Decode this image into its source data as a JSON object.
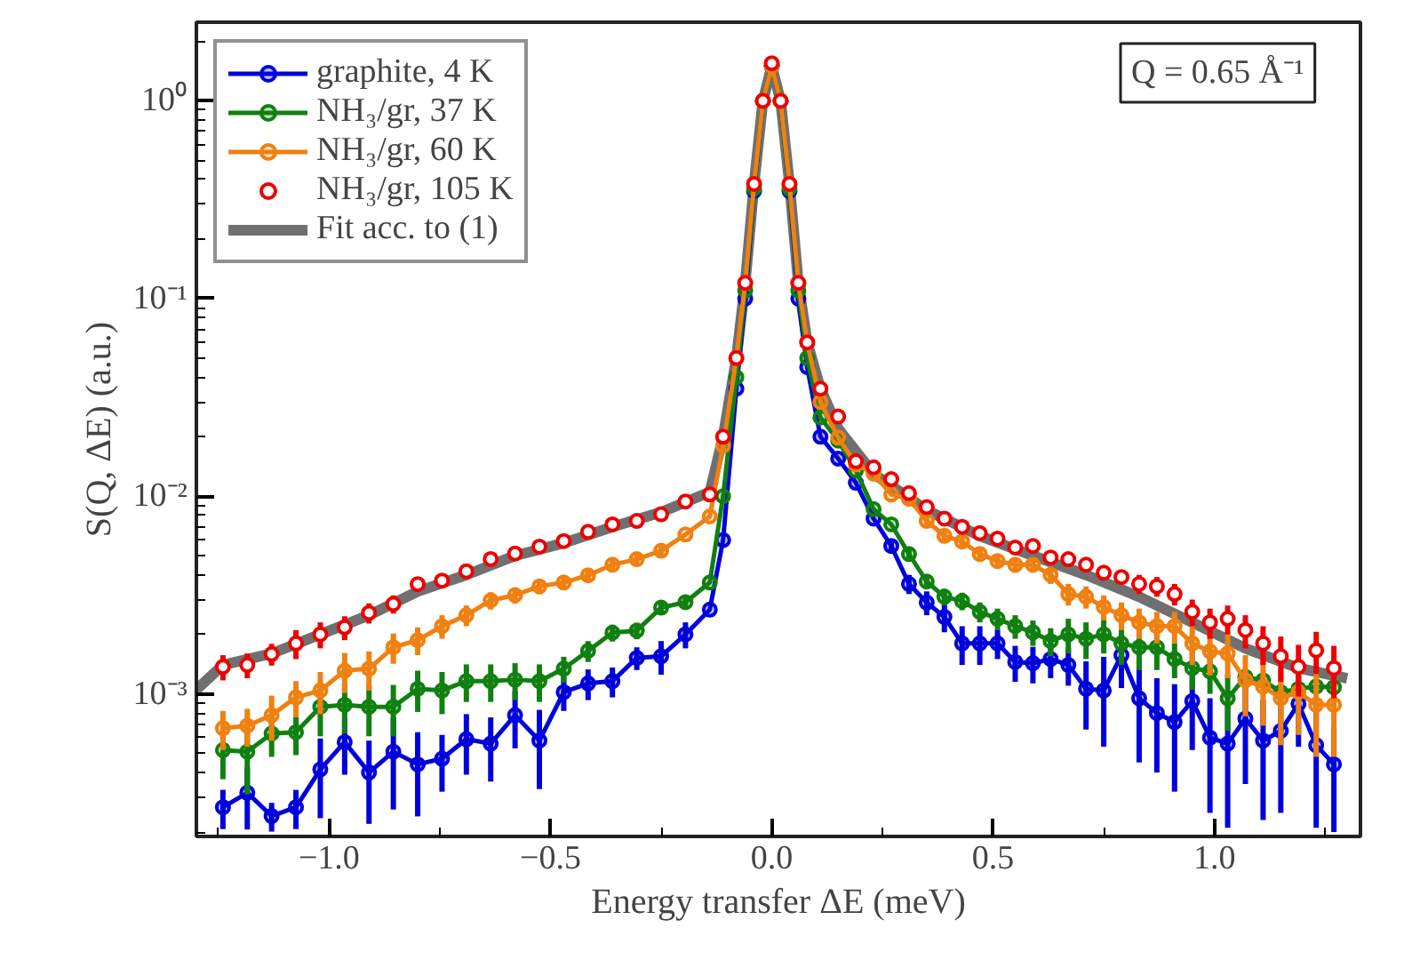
{
  "chart_data": {
    "type": "line",
    "xlabel": "Energy transfer ΔE (meV)",
    "ylabel": "S(Q, ΔE) (a.u.)",
    "annotations": [
      "Q = 0.65 Å⁻¹"
    ],
    "log": "y",
    "grid": false,
    "legend": "top left",
    "xlim": [
      -1.3,
      1.33
    ],
    "ylim": [
      0.00019,
      2.5
    ],
    "xticks": [
      {
        "value": -1.0,
        "label": "−1.0"
      },
      {
        "value": -0.5,
        "label": "−0.5"
      },
      {
        "value": 0.0,
        "label": "0.0"
      },
      {
        "value": 0.5,
        "label": "0.5"
      },
      {
        "value": 1.0,
        "label": "1.0"
      }
    ],
    "yticks": [
      {
        "value": 0.001,
        "label": "10⁻³"
      },
      {
        "value": 0.01,
        "label": "10⁻²"
      },
      {
        "value": 0.1,
        "label": "10⁻¹"
      },
      {
        "value": 1,
        "label": "10⁰"
      }
    ],
    "x": [
      -1.24,
      -1.185,
      -1.13,
      -1.075,
      -1.02,
      -0.965,
      -0.91,
      -0.855,
      -0.8,
      -0.745,
      -0.69,
      -0.635,
      -0.58,
      -0.525,
      -0.47,
      -0.415,
      -0.36,
      -0.305,
      -0.25,
      -0.195,
      -0.14,
      -0.11,
      -0.08,
      -0.06,
      -0.04,
      -0.02,
      0,
      0.02,
      0.04,
      0.06,
      0.08,
      0.11,
      0.15,
      0.19,
      0.23,
      0.27,
      0.31,
      0.35,
      0.39,
      0.43,
      0.47,
      0.51,
      0.55,
      0.59,
      0.63,
      0.67,
      0.71,
      0.75,
      0.79,
      0.83,
      0.87,
      0.91,
      0.95,
      0.99,
      1.03,
      1.07,
      1.11,
      1.15,
      1.19,
      1.23,
      1.27
    ],
    "series": [
      {
        "name": "Fit acc. to (1)",
        "color": "#707070",
        "marker": "none",
        "x": [
          -1.3,
          -1.24,
          -1.13,
          -1.02,
          -0.91,
          -0.8,
          -0.69,
          -0.58,
          -0.47,
          -0.36,
          -0.25,
          -0.14,
          -0.11,
          -0.08,
          -0.06,
          -0.04,
          -0.02,
          0,
          0.02,
          0.04,
          0.06,
          0.08,
          0.11,
          0.15,
          0.23,
          0.35,
          0.47,
          0.59,
          0.71,
          0.83,
          0.95,
          1.07,
          1.19,
          1.3
        ],
        "values": [
          0.00105,
          0.0014,
          0.0016,
          0.002,
          0.0025,
          0.0033,
          0.004,
          0.005,
          0.0058,
          0.007,
          0.0083,
          0.0105,
          0.02,
          0.05,
          0.12,
          0.38,
          1.0,
          1.5,
          1.0,
          0.38,
          0.12,
          0.06,
          0.035,
          0.022,
          0.013,
          0.0085,
          0.0063,
          0.005,
          0.004,
          0.0031,
          0.0023,
          0.0017,
          0.00135,
          0.0012
        ]
      },
      {
        "name": "graphite, 4 K",
        "color": "#0000dd",
        "marker": "circle",
        "values": [
          0.000267,
          0.000316,
          0.000241,
          0.000267,
          0.000415,
          0.00057,
          0.0004,
          0.00051,
          0.00044,
          0.00047,
          0.00059,
          0.00056,
          0.00078,
          0.00058,
          0.00102,
          0.00113,
          0.00116,
          0.00152,
          0.00155,
          0.002,
          0.00267,
          0.006,
          0.035,
          0.1,
          0.35,
          1.0,
          1.5,
          1.0,
          0.35,
          0.1,
          0.045,
          0.02,
          0.0155,
          0.0117,
          0.0077,
          0.0056,
          0.0036,
          0.0029,
          0.00245,
          0.0018,
          0.0018,
          0.0018,
          0.00145,
          0.00143,
          0.0015,
          0.0014,
          0.00106,
          0.00104,
          0.00157,
          0.00095,
          0.0008,
          0.00072,
          0.00092,
          0.0006,
          0.00056,
          0.00075,
          0.00058,
          0.00065,
          0.00089,
          0.00055,
          0.00044
        ],
        "errors": [
          6e-05,
          0.00011,
          4e-05,
          6e-05,
          0.00018,
          0.00018,
          0.00018,
          0.00025,
          0.0002,
          0.00015,
          0.0002,
          0.0002,
          0.00025,
          0.00025,
          0.0002,
          0.0002,
          0.0002,
          0.0002,
          0.0003,
          0.0003,
          null,
          null,
          null,
          null,
          null,
          null,
          null,
          null,
          null,
          null,
          null,
          null,
          null,
          null,
          null,
          0.0003,
          0.0004,
          0.0004,
          0.0004,
          0.0004,
          0.0004,
          0.0003,
          0.0003,
          0.0003,
          0.0003,
          0.0003,
          0.0004,
          0.0005,
          0.0005,
          0.0005,
          0.0004,
          0.0004,
          0.0004,
          0.00035,
          0.00035,
          0.0004,
          0.00035,
          0.0004,
          0.00035,
          0.00034,
          0.00024
        ]
      },
      {
        "name": "NH₃/gr, 37 K",
        "color": "#108010",
        "marker": "circle",
        "values": [
          0.00052,
          0.00051,
          0.00063,
          0.00064,
          0.00086,
          0.00088,
          0.00086,
          0.00086,
          0.00106,
          0.00104,
          0.00116,
          0.00116,
          0.00118,
          0.00116,
          0.00134,
          0.00165,
          0.00204,
          0.00209,
          0.00273,
          0.00291,
          0.00366,
          0.01,
          0.04,
          0.11,
          0.36,
          1.0,
          1.5,
          1.0,
          0.36,
          0.11,
          0.05,
          0.025,
          0.0191,
          0.0135,
          0.0086,
          0.0072,
          0.0051,
          0.0037,
          0.0031,
          0.00295,
          0.0026,
          0.0024,
          0.0022,
          0.00205,
          0.00185,
          0.002,
          0.0019,
          0.002,
          0.0018,
          0.00172,
          0.00172,
          0.0015,
          0.00135,
          0.0013,
          0.00095,
          0.00122,
          0.00117,
          0.00102,
          0.00106,
          0.00109,
          0.00108
        ],
        "errors": [
          0.00015,
          0.0002,
          0.00015,
          0.00015,
          0.00025,
          0.00025,
          0.00025,
          0.00025,
          0.00025,
          0.00025,
          0.00025,
          0.00025,
          0.00025,
          0.00025,
          0.0002,
          0.0002,
          0.0002,
          0.0002,
          0.0002,
          0.0002,
          null,
          null,
          null,
          null,
          null,
          null,
          null,
          null,
          null,
          null,
          null,
          null,
          null,
          null,
          null,
          null,
          0.0004,
          0.0003,
          0.0003,
          0.0003,
          0.0003,
          0.0003,
          0.0003,
          0.0003,
          0.0003,
          0.0004,
          0.0004,
          0.0004,
          0.0004,
          0.0004,
          0.0004,
          0.0003,
          0.0003,
          0.0003,
          0.0003,
          null,
          null,
          null,
          null,
          null,
          null
        ]
      },
      {
        "name": "NH₃/gr, 60 K",
        "color": "#f08010",
        "marker": "circle",
        "values": [
          0.00067,
          0.00069,
          0.00078,
          0.00096,
          0.00104,
          0.00131,
          0.00134,
          0.00172,
          0.00187,
          0.0022,
          0.0025,
          0.00297,
          0.00316,
          0.0035,
          0.00366,
          0.00398,
          0.0045,
          0.0048,
          0.0053,
          0.0064,
          0.0079,
          0.018,
          0.05,
          0.12,
          0.38,
          1.0,
          1.5,
          1.0,
          0.38,
          0.12,
          0.06,
          0.03,
          0.0198,
          0.0145,
          0.013,
          0.0102,
          0.0097,
          0.0075,
          0.0063,
          0.0059,
          0.0051,
          0.0047,
          0.0045,
          0.0045,
          0.004,
          0.0032,
          0.0031,
          0.00275,
          0.0025,
          0.0023,
          0.0022,
          0.0022,
          0.0018,
          0.00164,
          0.0016,
          0.00117,
          0.00109,
          0.00095,
          0.00102,
          0.00088,
          0.00088
        ],
        "errors": [
          0.00015,
          0.00015,
          0.0002,
          0.0002,
          0.00025,
          0.0003,
          0.0003,
          0.0003,
          0.0003,
          0.0003,
          0.0003,
          0.0003,
          0.0003,
          0.0003,
          0.0003,
          0.0003,
          0.0003,
          0.0003,
          0.0003,
          null,
          null,
          null,
          null,
          null,
          null,
          null,
          null,
          null,
          null,
          null,
          null,
          null,
          null,
          null,
          null,
          null,
          0.0005,
          0.0005,
          0.0005,
          0.0004,
          0.0004,
          0.0004,
          0.0004,
          0.0004,
          0.0004,
          0.0004,
          0.0004,
          0.0004,
          0.0004,
          0.0004,
          0.0004,
          0.0004,
          0.0004,
          0.0004,
          0.0004,
          0.0004,
          0.0004,
          0.0004,
          0.0004,
          0.0004,
          0.0004
        ]
      },
      {
        "name": "NH₃/gr, 105 K",
        "type": "scatter",
        "color": "#ee0000",
        "marker": "circle",
        "values": [
          0.00137,
          0.0014,
          0.00159,
          0.0018,
          0.002,
          0.00217,
          0.00257,
          0.00285,
          0.00359,
          0.00374,
          0.00417,
          0.00481,
          0.00513,
          0.00556,
          0.00593,
          0.0066,
          0.0072,
          0.0075,
          0.0081,
          0.0094,
          0.0102,
          0.02,
          0.05,
          0.12,
          0.38,
          1.0,
          1.55,
          1.0,
          0.38,
          0.12,
          0.06,
          0.035,
          0.0253,
          0.015,
          0.014,
          0.0122,
          0.01036,
          0.0088,
          0.0077,
          0.007,
          0.0065,
          0.0061,
          0.0055,
          0.0056,
          0.0049,
          0.0048,
          0.0045,
          0.0041,
          0.0039,
          0.0036,
          0.0035,
          0.0032,
          0.0026,
          0.0023,
          0.0024,
          0.0021,
          0.0018,
          0.00155,
          0.00137,
          0.00166,
          0.00135
        ],
        "errors": [
          0.0002,
          0.0002,
          0.0002,
          0.0003,
          0.0003,
          0.0003,
          0.0003,
          0.0003,
          null,
          null,
          null,
          null,
          null,
          null,
          null,
          null,
          null,
          null,
          null,
          null,
          null,
          null,
          null,
          null,
          null,
          null,
          null,
          null,
          null,
          null,
          null,
          null,
          null,
          null,
          null,
          null,
          null,
          null,
          null,
          null,
          null,
          null,
          null,
          null,
          null,
          null,
          null,
          null,
          null,
          0.0004,
          0.0004,
          0.0004,
          0.0004,
          0.0004,
          0.0004,
          0.0004,
          0.0004,
          0.0004,
          0.0004,
          0.0004,
          0.0004
        ]
      }
    ]
  }
}
